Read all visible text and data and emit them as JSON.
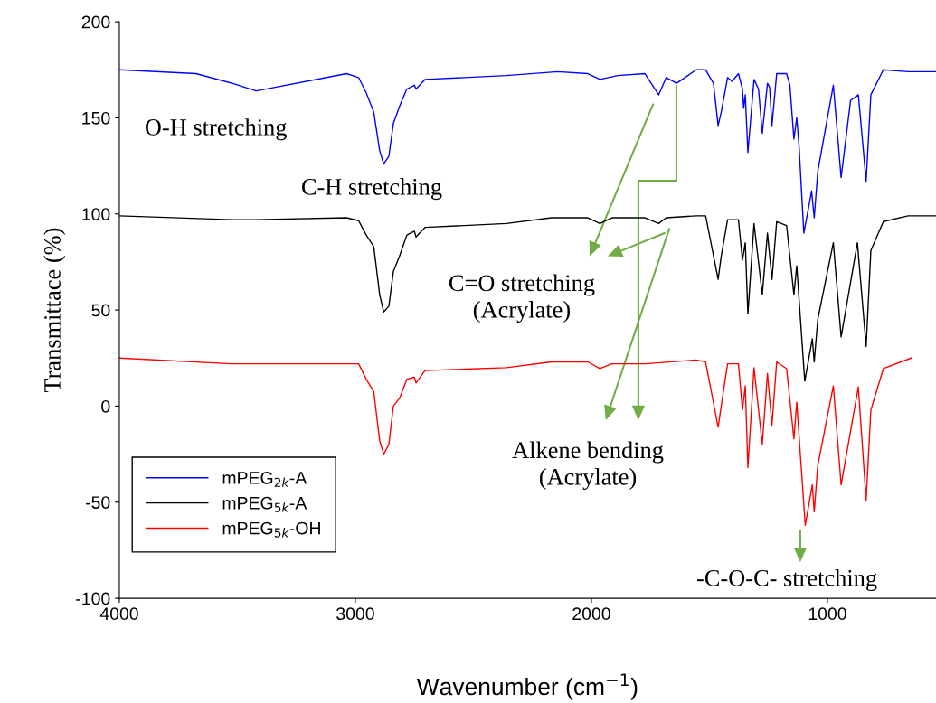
{
  "chart_data": {
    "type": "line",
    "xlabel": "Wavenumber (cm$^{−1}$)",
    "ylabel": "Transmittace (%)",
    "xlim": [
      4000,
      540
    ],
    "xticks": [
      4000,
      3000,
      2000,
      1000
    ],
    "ylim": [
      -100,
      200
    ],
    "yticks": [
      -100,
      -50,
      0,
      50,
      100,
      150,
      200
    ],
    "grid": false,
    "legend": "bottom left",
    "marker": "none",
    "line_style": "solid",
    "annotations": [
      "O-H stretching",
      "C-H stretching",
      "C=O stretching\n(Acrylate)",
      "Alkene bending\n(Acrylate)",
      "-C-O-C- stretching"
    ],
    "series": [
      {
        "name": "mPEG$_{2k}$-A",
        "color": "#0000ff",
        "x": [
          4000,
          3675,
          3522,
          3420,
          3037,
          2986,
          2954,
          2922,
          2897,
          2880,
          2858,
          2839,
          2813,
          2782,
          2750,
          2743,
          2705,
          2360,
          2143,
          2015,
          1964,
          1888,
          1773,
          1715,
          1683,
          1639,
          1556,
          1516,
          1483,
          1463,
          1450,
          1423,
          1404,
          1377,
          1360,
          1355,
          1348,
          1337,
          1311,
          1292,
          1276,
          1254,
          1245,
          1235,
          1215,
          1173,
          1159,
          1142,
          1130,
          1120,
          1100,
          1067,
          1056,
          1041,
          975,
          942,
          902,
          869,
          836,
          816,
          763,
          658,
          540
        ],
        "values": [
          175,
          173,
          168,
          164,
          173,
          171,
          163,
          153,
          133,
          126,
          130,
          147,
          156,
          165,
          167,
          165,
          170,
          172,
          174,
          173,
          170,
          172,
          173,
          162,
          171,
          168,
          175,
          175,
          168,
          146,
          153,
          171,
          169,
          173,
          165,
          155,
          162,
          132,
          170,
          165,
          142,
          168,
          166,
          146,
          173,
          173,
          167,
          139,
          150,
          135,
          90,
          112,
          98,
          122,
          167,
          119,
          159,
          162,
          117,
          162,
          175,
          174,
          174
        ]
      },
      {
        "name": "mPEG$_{5k}$-A",
        "color": "#000000",
        "x": [
          4000,
          3522,
          3420,
          3037,
          2986,
          2954,
          2922,
          2897,
          2880,
          2858,
          2839,
          2813,
          2782,
          2750,
          2743,
          2705,
          2360,
          2169,
          2015,
          1964,
          1913,
          1773,
          1715,
          1683,
          1556,
          1516,
          1463,
          1450,
          1423,
          1377,
          1360,
          1348,
          1337,
          1311,
          1276,
          1254,
          1235,
          1215,
          1173,
          1142,
          1130,
          1096,
          1064,
          1056,
          1041,
          975,
          942,
          873,
          836,
          816,
          763,
          658,
          540
        ],
        "values": [
          99,
          97,
          97,
          98,
          96.5,
          89,
          83,
          58,
          49,
          52,
          70,
          78,
          89,
          91,
          88,
          93,
          95,
          98,
          98,
          95,
          98,
          98,
          95,
          98,
          99,
          99,
          66,
          78,
          97,
          97,
          76,
          85,
          48,
          95,
          58,
          90,
          66,
          96,
          94,
          58,
          73,
          13,
          35,
          23,
          45,
          85,
          36,
          85,
          31,
          81,
          96,
          99,
          99
        ]
      },
      {
        "name": "mPEG$_{5k}$-OH",
        "color": "#ff0000",
        "x": [
          4000,
          3522,
          3037,
          2986,
          2954,
          2922,
          2897,
          2880,
          2858,
          2839,
          2813,
          2782,
          2750,
          2743,
          2705,
          2360,
          2169,
          2015,
          1964,
          1913,
          1773,
          1556,
          1516,
          1463,
          1450,
          1423,
          1377,
          1360,
          1348,
          1337,
          1311,
          1276,
          1254,
          1235,
          1215,
          1173,
          1142,
          1130,
          1094,
          1064,
          1056,
          1041,
          975,
          942,
          869,
          836,
          816,
          763,
          645
        ],
        "values": [
          25,
          22,
          22,
          22,
          14,
          7.5,
          -18,
          -25,
          -20,
          0,
          4,
          14,
          15,
          12,
          18.5,
          20,
          23,
          23,
          19.5,
          22,
          22,
          24,
          23,
          -11,
          0,
          22,
          22,
          -2,
          10.5,
          -32,
          20,
          -20,
          17,
          -10,
          23,
          19.5,
          -17,
          2,
          -62,
          -41,
          -55,
          -31,
          10.5,
          -41,
          10,
          -49,
          -2,
          19.5,
          25
        ]
      }
    ]
  }
}
